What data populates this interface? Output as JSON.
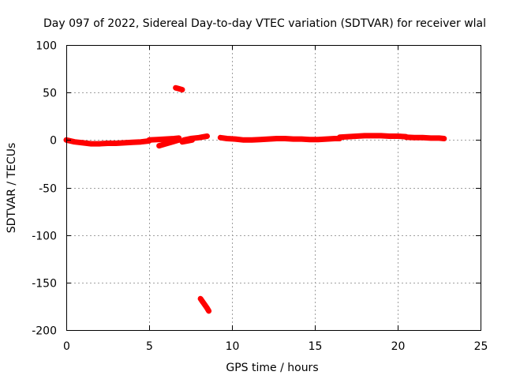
{
  "chart_data": {
    "type": "scatter",
    "title": "Day 097 of 2022, Sidereal Day-to-day VTEC variation (SDTVAR) for receiver wlal",
    "xlabel": "GPS time / hours",
    "ylabel": "SDTVAR / TECUs",
    "xlim": [
      0,
      25
    ],
    "ylim": [
      -200,
      100
    ],
    "xticks": [
      0,
      5,
      10,
      15,
      20,
      25
    ],
    "yticks": [
      -200,
      -150,
      -100,
      -50,
      0,
      50,
      100
    ],
    "grid": true,
    "legend": "none",
    "series_color": "#ff0000",
    "segments": [
      [
        [
          0.0,
          0.0
        ],
        [
          0.5,
          -2.0
        ],
        [
          1.0,
          -3.0
        ],
        [
          1.5,
          -4.0
        ],
        [
          2.0,
          -4.0
        ],
        [
          2.5,
          -3.5
        ],
        [
          3.0,
          -3.5
        ],
        [
          3.5,
          -3.0
        ],
        [
          4.0,
          -2.5
        ],
        [
          4.5,
          -2.0
        ],
        [
          5.0,
          -1.0
        ]
      ],
      [
        [
          5.0,
          0.0
        ],
        [
          5.5,
          0.5
        ],
        [
          6.0,
          1.0
        ],
        [
          6.5,
          1.5
        ],
        [
          6.8,
          2.0
        ]
      ],
      [
        [
          5.6,
          -6.0
        ],
        [
          6.0,
          -4.0
        ],
        [
          6.4,
          -2.0
        ],
        [
          6.8,
          0.0
        ]
      ],
      [
        [
          7.1,
          0.0
        ],
        [
          7.5,
          1.5
        ],
        [
          8.0,
          2.5
        ],
        [
          8.5,
          4.0
        ]
      ],
      [
        [
          7.0,
          -2.0
        ],
        [
          7.3,
          -1.0
        ],
        [
          7.6,
          0.0
        ]
      ],
      [
        [
          9.3,
          2.5
        ],
        [
          9.7,
          1.5
        ],
        [
          10.2,
          1.0
        ],
        [
          10.7,
          0.0
        ],
        [
          11.2,
          0.0
        ],
        [
          11.7,
          0.5
        ],
        [
          12.2,
          1.0
        ],
        [
          12.7,
          1.5
        ],
        [
          13.2,
          1.5
        ],
        [
          13.7,
          1.0
        ],
        [
          14.2,
          1.0
        ],
        [
          14.7,
          0.5
        ],
        [
          15.2,
          0.5
        ],
        [
          15.7,
          1.0
        ],
        [
          16.2,
          1.5
        ],
        [
          16.5,
          1.5
        ]
      ],
      [
        [
          16.5,
          3.0
        ],
        [
          17.0,
          3.5
        ],
        [
          17.5,
          4.0
        ],
        [
          18.0,
          4.5
        ],
        [
          18.5,
          4.5
        ],
        [
          19.0,
          4.5
        ],
        [
          19.5,
          4.0
        ],
        [
          20.0,
          4.0
        ],
        [
          20.5,
          3.5
        ]
      ],
      [
        [
          20.5,
          3.0
        ],
        [
          21.0,
          2.5
        ],
        [
          21.5,
          2.5
        ],
        [
          22.0,
          2.0
        ],
        [
          22.5,
          2.0
        ],
        [
          22.8,
          1.5
        ]
      ],
      [
        [
          6.6,
          55.0
        ],
        [
          6.8,
          54.0
        ],
        [
          7.0,
          53.0
        ]
      ],
      [
        [
          8.1,
          -167.0
        ],
        [
          8.3,
          -172.0
        ],
        [
          8.5,
          -177.0
        ],
        [
          8.6,
          -180.0
        ]
      ]
    ]
  }
}
